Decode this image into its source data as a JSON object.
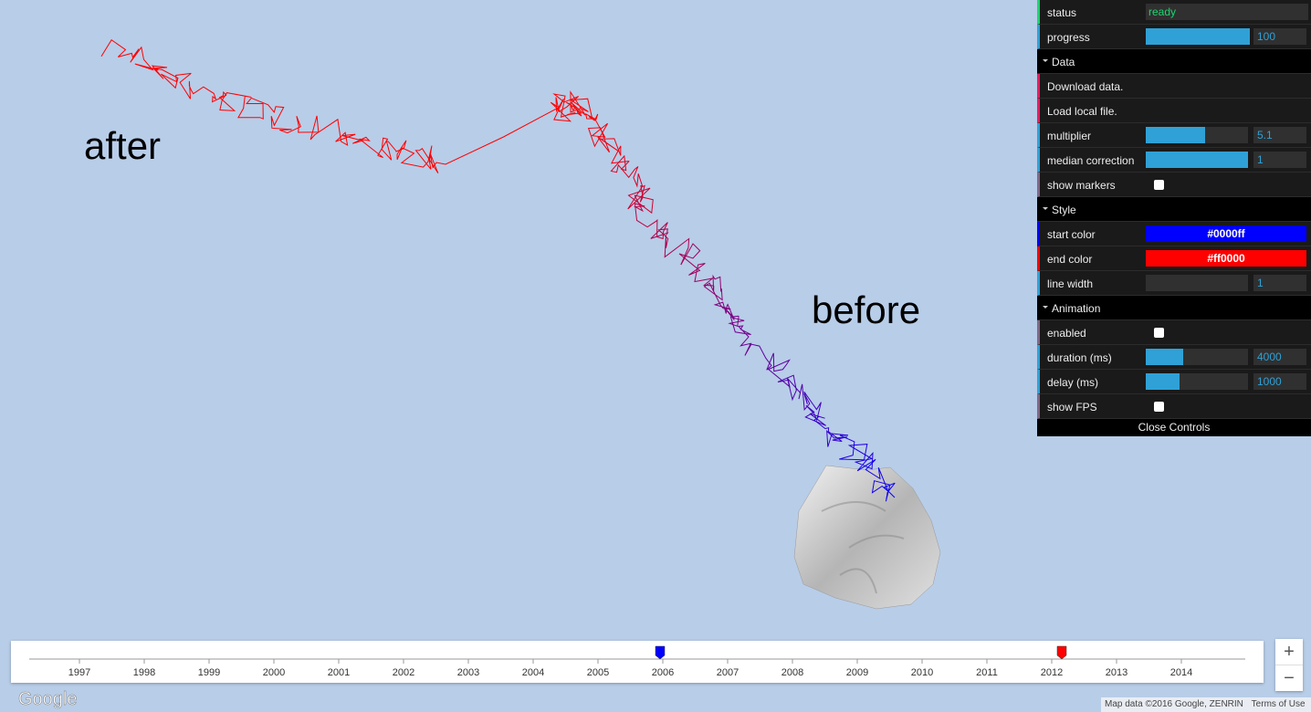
{
  "map": {
    "label_after": "after",
    "label_before": "before",
    "logo": "Google",
    "attribution": "Map data ©2016 Google, ZENRIN",
    "terms": "Terms of Use",
    "zoom_in": "+",
    "zoom_out": "−"
  },
  "timeline": {
    "years": [
      "1997",
      "1998",
      "1999",
      "2000",
      "2001",
      "2002",
      "2003",
      "2004",
      "2005",
      "2006",
      "2007",
      "2008",
      "2009",
      "2010",
      "2011",
      "2012",
      "2013",
      "2014"
    ]
  },
  "controls": {
    "status": {
      "label": "status",
      "value": "ready"
    },
    "progress": {
      "label": "progress",
      "value": 100
    },
    "data": {
      "title": "Data",
      "download": "Download data.",
      "load": "Load local file.",
      "multiplier": {
        "label": "multiplier",
        "value": 5.1
      },
      "median_correction": {
        "label": "median correction",
        "value": 1
      },
      "show_markers": {
        "label": "show markers"
      }
    },
    "style": {
      "title": "Style",
      "start_color": {
        "label": "start color",
        "value": "#0000ff"
      },
      "end_color": {
        "label": "end color",
        "value": "#ff0000"
      },
      "line_width": {
        "label": "line width",
        "value": 1
      }
    },
    "animation": {
      "title": "Animation",
      "enabled": {
        "label": "enabled"
      },
      "duration": {
        "label": "duration (ms)",
        "value": 4000
      },
      "delay": {
        "label": "delay (ms)",
        "value": 1000
      },
      "show_fps": {
        "label": "show FPS"
      }
    },
    "close": "Close Controls"
  }
}
